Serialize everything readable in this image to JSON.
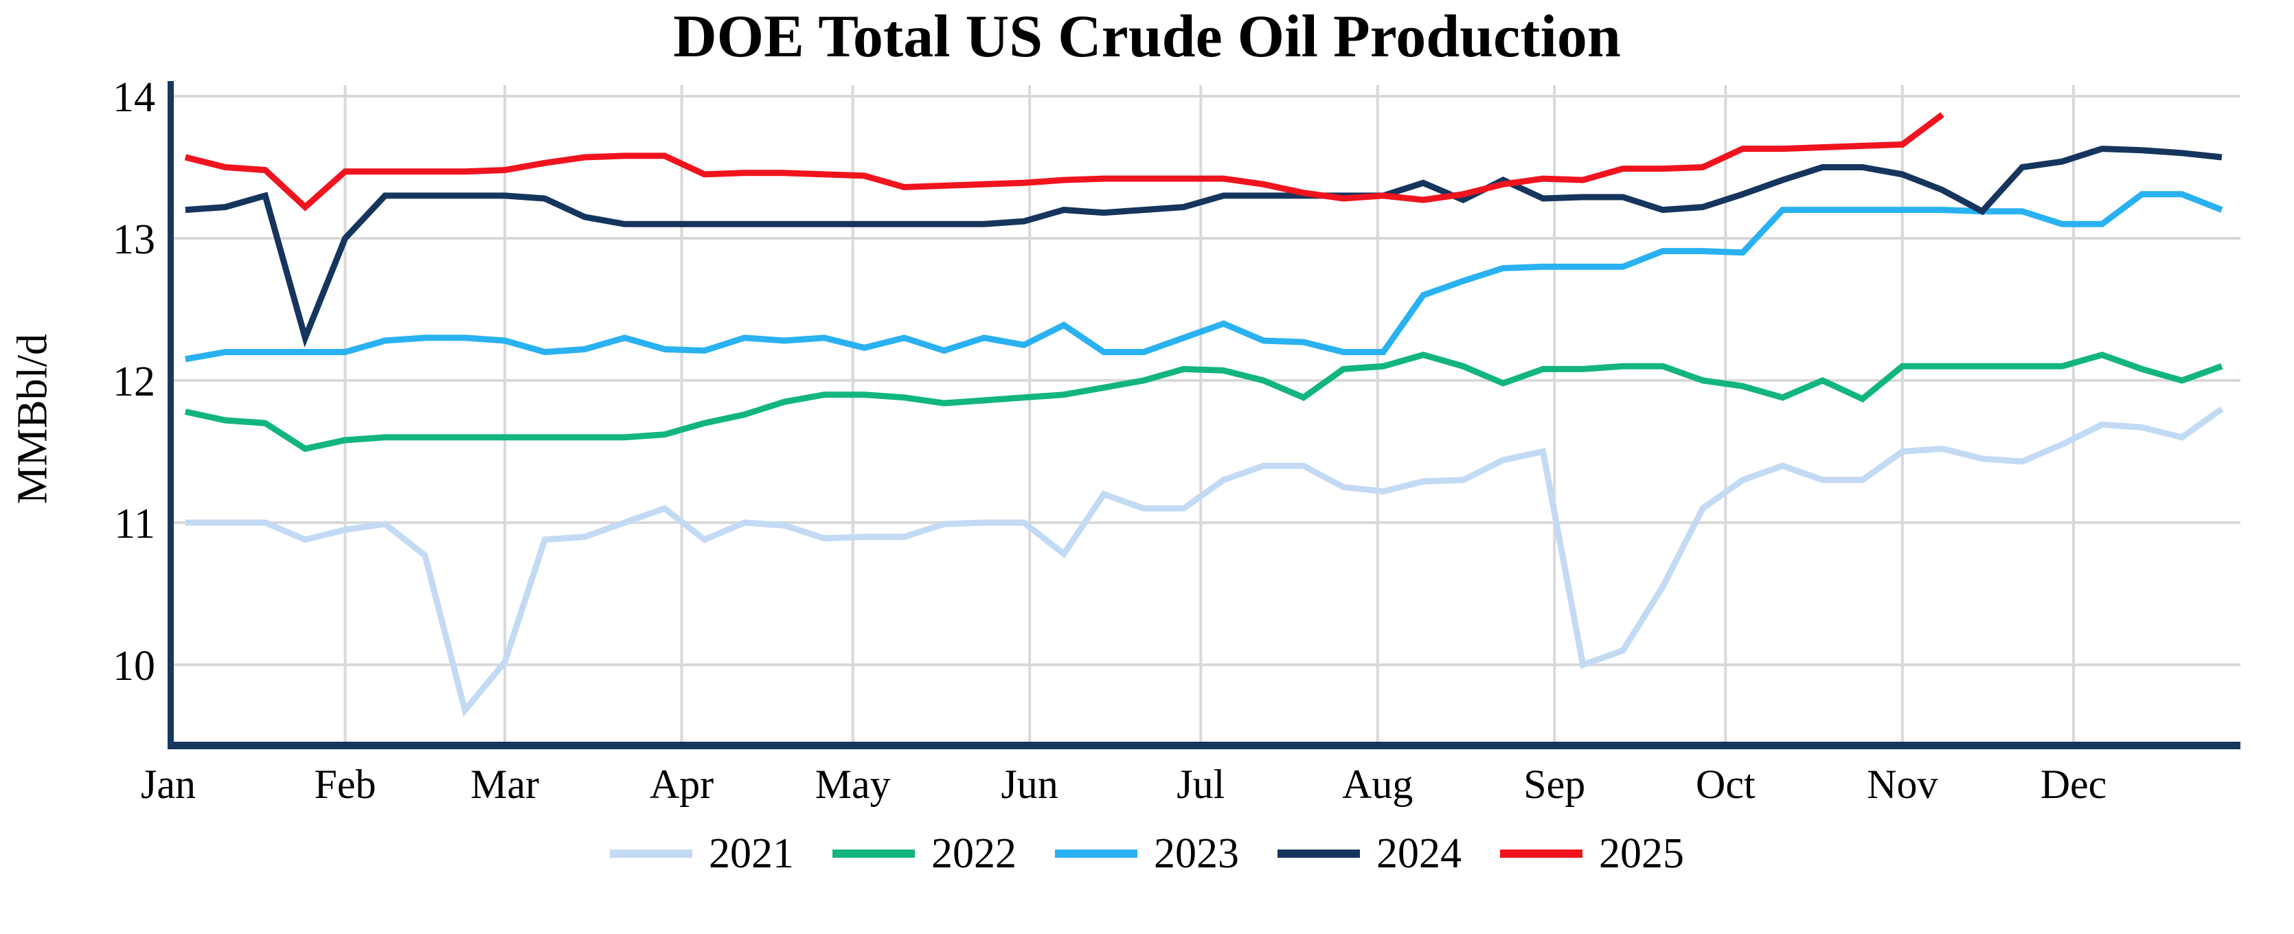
{
  "chart": {
    "title": "DOE Total US Crude Oil Production",
    "y_axis": {
      "label": "MMBbl/d"
    },
    "colors": {
      "background": "#ffffff",
      "gridline": "#d9d9d9",
      "axis_spine": "#17375e",
      "text": "#000000"
    }
  },
  "legend": {
    "items": [
      {
        "label": "2021",
        "color": "#c3daf4"
      },
      {
        "label": "2022",
        "color": "#12b57d"
      },
      {
        "label": "2023",
        "color": "#29b1f1"
      },
      {
        "label": "2024",
        "color": "#15355d"
      },
      {
        "label": "2025",
        "color": "#f0141e"
      }
    ]
  },
  "chart_data": {
    "type": "line",
    "title": "DOE Total US Crude Oil Production",
    "xlabel": "",
    "ylabel": "MMBbl/d",
    "ylim": [
      9.45,
      14.1
    ],
    "y_ticks": [
      14,
      13,
      12,
      11,
      10
    ],
    "x_tick_labels": [
      "Jan",
      "Feb",
      "Mar",
      "Apr",
      "May",
      "Jun",
      "Jul",
      "Aug",
      "Sep",
      "Oct",
      "Nov",
      "Dec"
    ],
    "month_start_days": [
      0,
      31,
      59,
      90,
      120,
      151,
      181,
      212,
      243,
      273,
      304,
      334
    ],
    "x_unit": "day of year; weekly data points, first point at day 3, 7-day step",
    "grid": true,
    "legend_position": "bottom",
    "series": [
      {
        "name": "2021",
        "color": "#c3daf4",
        "start_day": 3,
        "step_days": 7,
        "values": [
          11.0,
          11.0,
          11.0,
          10.88,
          10.95,
          10.99,
          10.77,
          9.68,
          10.02,
          10.88,
          10.9,
          11.0,
          11.1,
          10.88,
          11.0,
          10.98,
          10.89,
          10.9,
          10.9,
          10.99,
          11.0,
          11.0,
          10.78,
          11.2,
          11.1,
          11.1,
          11.3,
          11.4,
          11.4,
          11.25,
          11.22,
          11.29,
          11.3,
          11.44,
          11.5,
          10.0,
          10.1,
          10.55,
          11.1,
          11.3,
          11.4,
          11.3,
          11.3,
          11.5,
          11.52,
          11.45,
          11.43,
          11.55,
          11.69,
          11.67,
          11.6,
          11.8
        ]
      },
      {
        "name": "2022",
        "color": "#12b57d",
        "start_day": 3,
        "step_days": 7,
        "values": [
          11.78,
          11.72,
          11.7,
          11.52,
          11.58,
          11.6,
          11.6,
          11.6,
          11.6,
          11.6,
          11.6,
          11.6,
          11.62,
          11.7,
          11.76,
          11.85,
          11.9,
          11.9,
          11.88,
          11.84,
          11.86,
          11.88,
          11.9,
          11.95,
          12.0,
          12.08,
          12.07,
          12.0,
          11.88,
          12.08,
          12.1,
          12.18,
          12.1,
          11.98,
          12.08,
          12.08,
          12.1,
          12.1,
          12.0,
          11.96,
          11.88,
          12.0,
          11.87,
          12.1,
          12.1,
          12.1,
          12.1,
          12.1,
          12.18,
          12.08,
          12.0,
          12.1
        ]
      },
      {
        "name": "2023",
        "color": "#29b1f1",
        "start_day": 3,
        "step_days": 7,
        "values": [
          12.15,
          12.2,
          12.2,
          12.2,
          12.2,
          12.28,
          12.3,
          12.3,
          12.28,
          12.2,
          12.22,
          12.3,
          12.22,
          12.21,
          12.3,
          12.28,
          12.3,
          12.23,
          12.3,
          12.21,
          12.3,
          12.25,
          12.39,
          12.2,
          12.2,
          12.3,
          12.4,
          12.28,
          12.27,
          12.2,
          12.2,
          12.6,
          12.7,
          12.79,
          12.8,
          12.8,
          12.8,
          12.91,
          12.91,
          12.9,
          13.2,
          13.2,
          13.2,
          13.2,
          13.2,
          13.19,
          13.19,
          13.1,
          13.1,
          13.31,
          13.31,
          13.2
        ]
      },
      {
        "name": "2024",
        "color": "#15355d",
        "start_day": 3,
        "step_days": 7,
        "values": [
          13.2,
          13.22,
          13.3,
          12.3,
          13.0,
          13.3,
          13.3,
          13.3,
          13.3,
          13.28,
          13.15,
          13.1,
          13.1,
          13.1,
          13.1,
          13.1,
          13.1,
          13.1,
          13.1,
          13.1,
          13.1,
          13.12,
          13.2,
          13.18,
          13.2,
          13.22,
          13.3,
          13.3,
          13.3,
          13.3,
          13.3,
          13.39,
          13.27,
          13.41,
          13.28,
          13.29,
          13.29,
          13.2,
          13.22,
          13.31,
          13.41,
          13.5,
          13.5,
          13.45,
          13.34,
          13.19,
          13.5,
          13.54,
          13.63,
          13.62,
          13.6,
          13.57
        ]
      },
      {
        "name": "2025",
        "color": "#f0141e",
        "start_day": 3,
        "step_days": 7,
        "values": [
          13.57,
          13.5,
          13.48,
          13.22,
          13.47,
          13.47,
          13.47,
          13.47,
          13.48,
          13.53,
          13.57,
          13.58,
          13.58,
          13.45,
          13.46,
          13.46,
          13.45,
          13.44,
          13.36,
          13.37,
          13.38,
          13.39,
          13.41,
          13.42,
          13.42,
          13.42,
          13.42,
          13.38,
          13.32,
          13.28,
          13.3,
          13.27,
          13.31,
          13.38,
          13.42,
          13.41,
          13.49,
          13.49,
          13.5,
          13.63,
          13.63,
          13.64,
          13.65,
          13.66,
          13.87
        ]
      }
    ]
  }
}
